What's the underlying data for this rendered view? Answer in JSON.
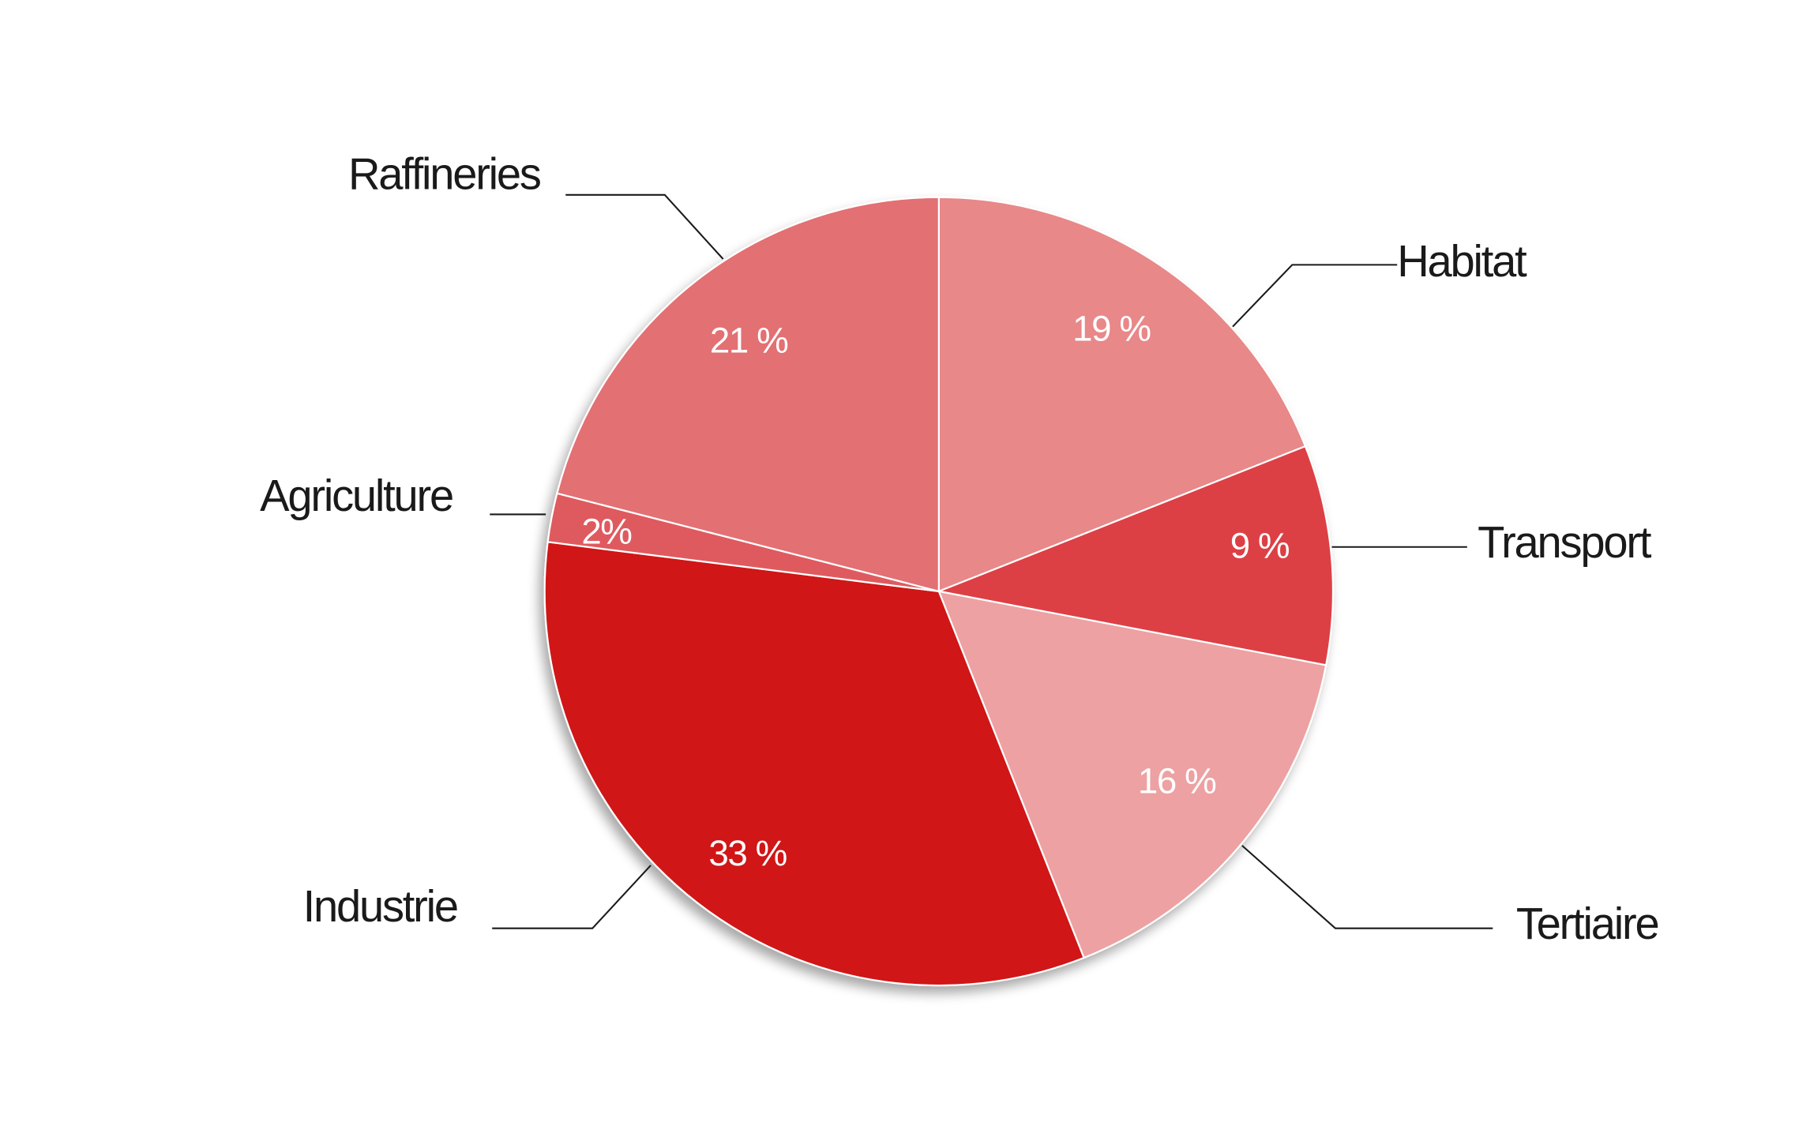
{
  "chart_data": {
    "type": "pie",
    "categories": [
      "Habitat",
      "Transport",
      "Tertiaire",
      "Industrie",
      "Agriculture",
      "Raffineries"
    ],
    "values": [
      19,
      9,
      16,
      33,
      2,
      21
    ],
    "value_labels": [
      "19 %",
      "9 %",
      "16 %",
      "33 %",
      "2%",
      "21 %"
    ],
    "colors": [
      "#e88889",
      "#dc4045",
      "#eda1a2",
      "#d01217",
      "#df5a5e",
      "#e37073"
    ]
  }
}
